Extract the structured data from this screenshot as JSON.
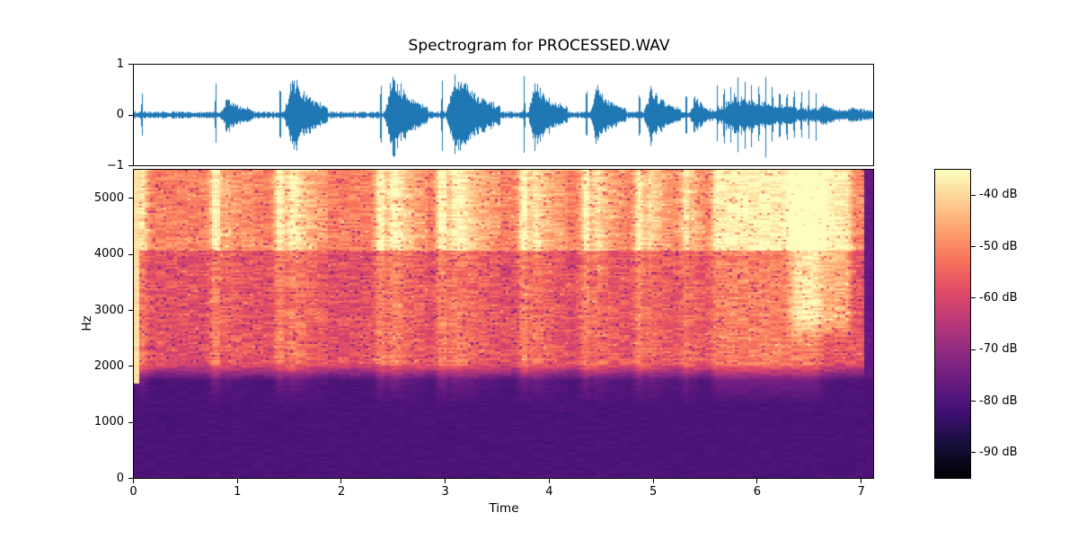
{
  "figure": {
    "title": "Spectrogram for PROCESSED.WAV",
    "background": "#ffffff"
  },
  "waveform_axes": {
    "ylim": [
      -1,
      1
    ],
    "yticks": [
      {
        "label": "1",
        "value": 1
      },
      {
        "label": "0",
        "value": 0
      },
      {
        "label": "−1",
        "value": -1
      }
    ],
    "line_color": "#1f77b4"
  },
  "spectrogram_axes": {
    "xlabel": "Time",
    "ylabel": "Hz",
    "xlim": [
      0,
      7.12
    ],
    "ylim": [
      0,
      5512
    ],
    "xticks": [
      {
        "label": "0",
        "value": 0
      },
      {
        "label": "1",
        "value": 1
      },
      {
        "label": "2",
        "value": 2
      },
      {
        "label": "3",
        "value": 3
      },
      {
        "label": "4",
        "value": 4
      },
      {
        "label": "5",
        "value": 5
      },
      {
        "label": "6",
        "value": 6
      },
      {
        "label": "7",
        "value": 7
      }
    ],
    "yticks": [
      {
        "label": "0",
        "value": 0
      },
      {
        "label": "1000",
        "value": 1000
      },
      {
        "label": "2000",
        "value": 2000
      },
      {
        "label": "3000",
        "value": 3000
      },
      {
        "label": "4000",
        "value": 4000
      },
      {
        "label": "5000",
        "value": 5000
      }
    ]
  },
  "colorbar": {
    "unit": "dB",
    "vmin": -95,
    "vmax": -35,
    "ticks": [
      {
        "label": "-40 dB",
        "value": -40
      },
      {
        "label": "-50 dB",
        "value": -50
      },
      {
        "label": "-60 dB",
        "value": -60
      },
      {
        "label": "-70 dB",
        "value": -70
      },
      {
        "label": "-80 dB",
        "value": -80
      },
      {
        "label": "-90 dB",
        "value": -90
      }
    ],
    "colormap": "magma",
    "stops": [
      [
        0.0,
        "#000004"
      ],
      [
        0.1,
        "#140e36"
      ],
      [
        0.2,
        "#3b0f70"
      ],
      [
        0.3,
        "#641a80"
      ],
      [
        0.4,
        "#8c2981"
      ],
      [
        0.5,
        "#b73779"
      ],
      [
        0.6,
        "#de4968"
      ],
      [
        0.7,
        "#f7705c"
      ],
      [
        0.8,
        "#fe9f6d"
      ],
      [
        0.9,
        "#fecf92"
      ],
      [
        1.0,
        "#fcfdbf"
      ]
    ]
  },
  "chart_data": [
    {
      "type": "line",
      "name": "waveform",
      "x_range": [
        0,
        7.12
      ],
      "ylim": [
        -1,
        1
      ],
      "line_color": "#1f77b4",
      "baseline_noise": 0.05,
      "clicks": [
        [
          0.08,
          0.66
        ],
        [
          0.79,
          0.84
        ],
        [
          1.41,
          0.8
        ],
        [
          2.38,
          0.86
        ],
        [
          2.97,
          0.94
        ],
        [
          3.76,
          0.88
        ],
        [
          4.36,
          0.74
        ],
        [
          4.87,
          0.72
        ],
        [
          5.32,
          0.64
        ],
        [
          5.62,
          0.74
        ],
        [
          5.685,
          0.86
        ],
        [
          5.75,
          0.8
        ],
        [
          5.82,
          0.9
        ],
        [
          5.885,
          0.84
        ],
        [
          5.95,
          0.92
        ],
        [
          6.02,
          0.86
        ],
        [
          6.085,
          0.94
        ],
        [
          6.15,
          0.84
        ],
        [
          6.22,
          0.88
        ],
        [
          6.29,
          0.78
        ],
        [
          6.36,
          0.74
        ],
        [
          6.43,
          0.66
        ],
        [
          6.5,
          0.7
        ],
        [
          6.57,
          0.58
        ]
      ],
      "bursts": [
        [
          0.84,
          0.3,
          0.32
        ],
        [
          1.45,
          0.74,
          0.42
        ],
        [
          2.42,
          0.78,
          0.42
        ],
        [
          3.01,
          0.82,
          0.52
        ],
        [
          3.8,
          0.64,
          0.38
        ],
        [
          4.4,
          0.58,
          0.34
        ],
        [
          4.91,
          0.52,
          0.36
        ],
        [
          5.36,
          0.32,
          0.22
        ],
        [
          5.6,
          0.36,
          1.02
        ],
        [
          6.6,
          0.2,
          0.25
        ],
        [
          6.85,
          0.13,
          0.3
        ]
      ]
    },
    {
      "type": "heatmap",
      "name": "spectrogram",
      "xlabel": "Time",
      "ylabel": "Hz",
      "x_range": [
        0,
        7.12
      ],
      "y_range": [
        0,
        5512
      ],
      "value_unit": "dB",
      "vmin": -95,
      "vmax": -35,
      "colormap": "magma",
      "highpass_cutoff_hz": 1800,
      "zones": [
        {
          "f_min": 4050,
          "f_max": 5512,
          "base_db": -51,
          "active_boost_db": 15,
          "noise_db": 5.5
        },
        {
          "f_min": 2050,
          "f_max": 4050,
          "base_db": -58,
          "active_boost_db": 7,
          "noise_db": 6
        },
        {
          "f_min": 0,
          "f_max": 1750,
          "base_db": -80.5,
          "active_boost_db": 6,
          "noise_db": 1.3
        }
      ],
      "bright_patch": {
        "t0": 6.25,
        "t1": 6.95,
        "f0": 2400,
        "f1": 5512,
        "boost_db": 13
      },
      "left_edge_column": {
        "t1": 0.045,
        "db": -39
      },
      "quiet_right_edge": {
        "t0": 7.03,
        "db": -77
      }
    }
  ]
}
